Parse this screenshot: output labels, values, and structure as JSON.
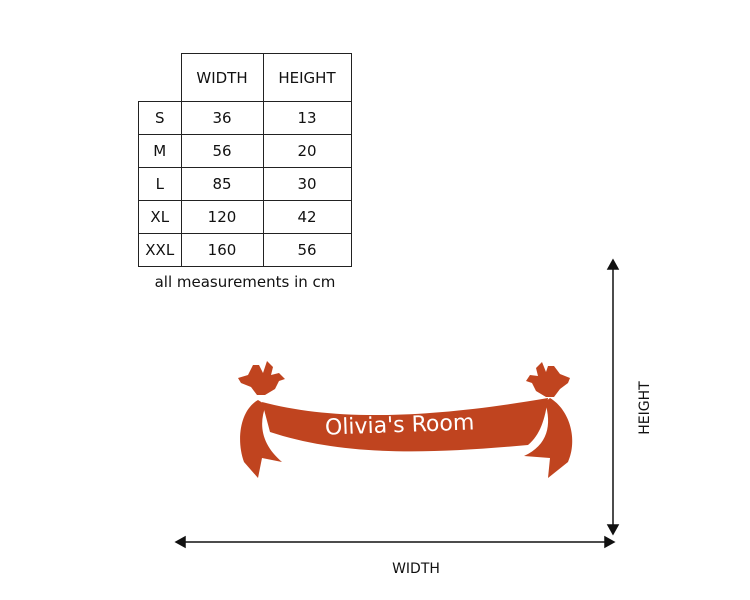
{
  "size_table": {
    "headers": [
      "",
      "WIDTH",
      "HEIGHT"
    ],
    "rows": [
      {
        "size": "S",
        "width": "36",
        "height": "13"
      },
      {
        "size": "M",
        "width": "56",
        "height": "20"
      },
      {
        "size": "L",
        "width": "85",
        "height": "30"
      },
      {
        "size": "XL",
        "width": "120",
        "height": "42"
      },
      {
        "size": "XXL",
        "width": "160",
        "height": "56"
      }
    ],
    "caption": "all measurements in cm"
  },
  "banner": {
    "text": "Olivia's Room",
    "color": "#c0441f"
  },
  "dimensions": {
    "width_label": "WIDTH",
    "height_label": "HEIGHT"
  }
}
